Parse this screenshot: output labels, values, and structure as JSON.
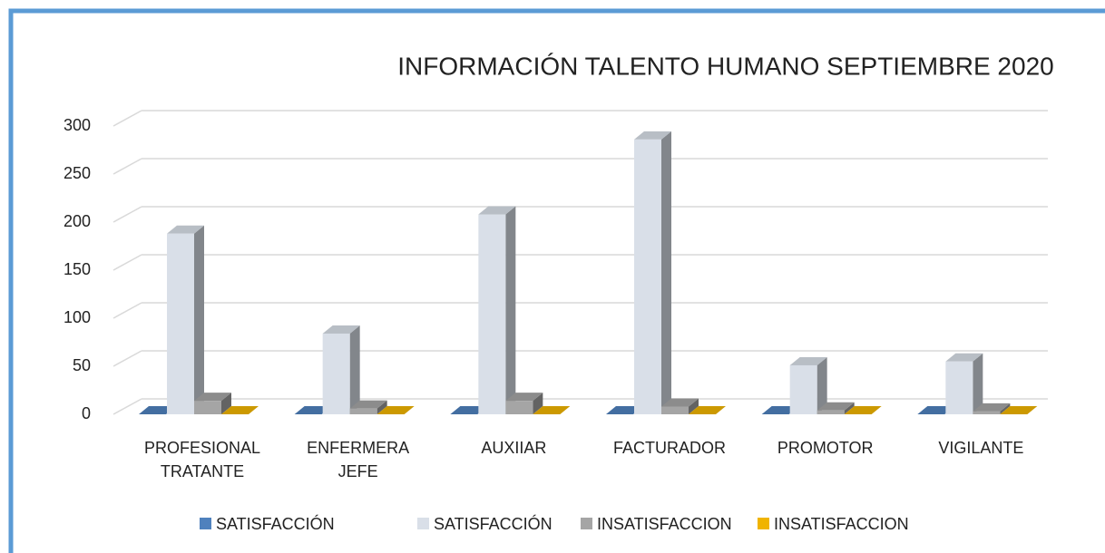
{
  "chart_data": {
    "type": "bar3d",
    "title": "INFORMACIÓN TALENTO HUMANO SEPTIEMBRE 2020",
    "categories": [
      "PROFESIONAL TRATANTE",
      "ENFERMERA JEFE",
      "AUXIIAR",
      "FACTURADOR",
      "PROMOTOR",
      "VIGILANTE"
    ],
    "series": [
      {
        "name": "SATISFACCIÓN",
        "color": "#4f81bd",
        "values": [
          0,
          0,
          0,
          0,
          0,
          0
        ]
      },
      {
        "name": "SATISFACCIÓN",
        "color": "#d9dfe8",
        "values": [
          188,
          84,
          208,
          286,
          51,
          55
        ]
      },
      {
        "name": "INSATISFACCION",
        "color": "#a5a5a5",
        "values": [
          14,
          6,
          14,
          8,
          4,
          3
        ]
      },
      {
        "name": "INSATISFACCION",
        "color": "#f0b400",
        "values": [
          0,
          0,
          0,
          0,
          0,
          0
        ]
      }
    ],
    "ylim": [
      0,
      300
    ],
    "yticks": [
      0,
      50,
      100,
      150,
      200,
      250,
      300
    ],
    "grid": true,
    "legend": "bottom"
  }
}
